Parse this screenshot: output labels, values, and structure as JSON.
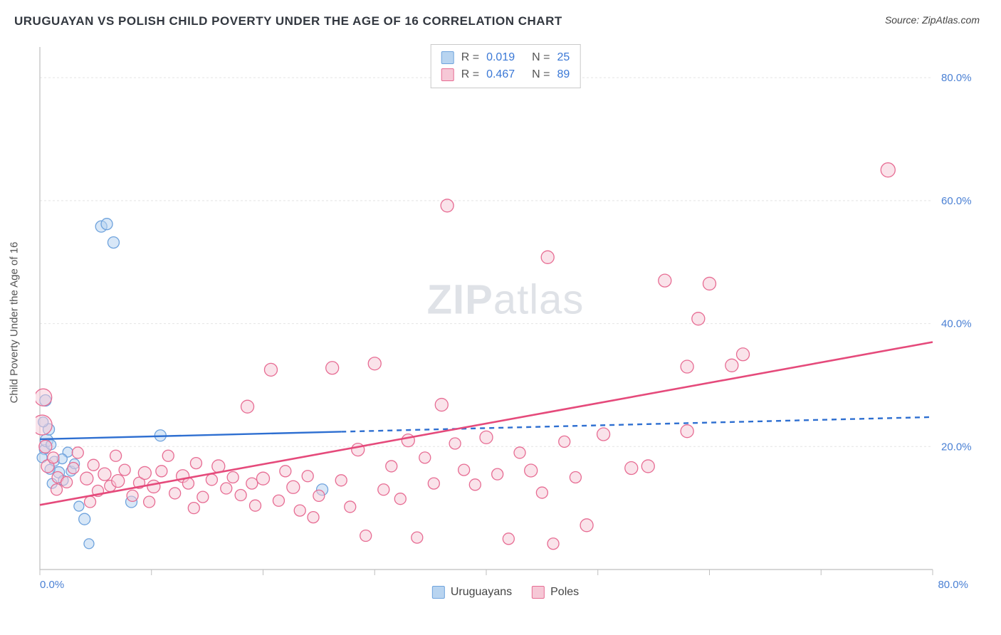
{
  "title": "URUGUAYAN VS POLISH CHILD POVERTY UNDER THE AGE OF 16 CORRELATION CHART",
  "source": "Source: ZipAtlas.com",
  "y_axis_label": "Child Poverty Under the Age of 16",
  "watermark_a": "ZIP",
  "watermark_b": "atlas",
  "chart": {
    "type": "scatter",
    "xlim": [
      0,
      80
    ],
    "ylim": [
      0,
      85
    ],
    "x_ticks": [
      0,
      10,
      20,
      30,
      40,
      50,
      60,
      70,
      80
    ],
    "y_ticks": [
      20,
      40,
      60,
      80
    ],
    "x_tick_labels": [
      "0.0%",
      "",
      "",
      "",
      "",
      "",
      "",
      "",
      "80.0%"
    ],
    "y_tick_labels": [
      "20.0%",
      "40.0%",
      "60.0%",
      "80.0%"
    ],
    "grid_color": "#e4e4e4",
    "axis_color": "#bfbfbf",
    "tick_label_color": "#4a80d4",
    "tick_label_fontsize": 15,
    "background_color": "#ffffff",
    "series": [
      {
        "name": "Uruguayans",
        "fill": "#b8d4f0",
        "stroke": "#6fa3dd",
        "fill_opacity": 0.55,
        "marker_stroke_width": 1.3,
        "trend_line": {
          "color": "#2e6fd1",
          "width": 2.4,
          "dash_after_x": 27,
          "y_start": 21.2,
          "y_end": 24.8
        },
        "points": [
          {
            "x": 0.4,
            "y": 19.5,
            "r": 7
          },
          {
            "x": 0.6,
            "y": 21.0,
            "r": 9
          },
          {
            "x": 0.8,
            "y": 22.8,
            "r": 8
          },
          {
            "x": 0.3,
            "y": 24.0,
            "r": 7
          },
          {
            "x": 0.5,
            "y": 27.5,
            "r": 8
          },
          {
            "x": 0.2,
            "y": 18.2,
            "r": 7
          },
          {
            "x": 1.0,
            "y": 20.3,
            "r": 7
          },
          {
            "x": 1.3,
            "y": 17.6,
            "r": 7
          },
          {
            "x": 1.7,
            "y": 15.8,
            "r": 8
          },
          {
            "x": 2.1,
            "y": 14.5,
            "r": 7
          },
          {
            "x": 2.5,
            "y": 19.1,
            "r": 7
          },
          {
            "x": 2.8,
            "y": 16.0,
            "r": 7
          },
          {
            "x": 3.1,
            "y": 17.2,
            "r": 7
          },
          {
            "x": 3.5,
            "y": 10.3,
            "r": 7
          },
          {
            "x": 4.0,
            "y": 8.2,
            "r": 8
          },
          {
            "x": 4.4,
            "y": 4.2,
            "r": 7
          },
          {
            "x": 5.5,
            "y": 55.8,
            "r": 8
          },
          {
            "x": 6.0,
            "y": 56.2,
            "r": 8
          },
          {
            "x": 6.6,
            "y": 53.2,
            "r": 8
          },
          {
            "x": 8.2,
            "y": 11.0,
            "r": 8
          },
          {
            "x": 10.8,
            "y": 21.8,
            "r": 8
          },
          {
            "x": 1.1,
            "y": 14.0,
            "r": 7
          },
          {
            "x": 0.9,
            "y": 16.3,
            "r": 7
          },
          {
            "x": 2.0,
            "y": 18.0,
            "r": 7
          },
          {
            "x": 25.3,
            "y": 13.0,
            "r": 8
          }
        ]
      },
      {
        "name": "Poles",
        "fill": "#f6c8d6",
        "stroke": "#e76c93",
        "fill_opacity": 0.5,
        "marker_stroke_width": 1.3,
        "trend_line": {
          "color": "#e54a7b",
          "width": 2.6,
          "y_start": 10.5,
          "y_end": 37.0
        },
        "points": [
          {
            "x": 0.2,
            "y": 23.5,
            "r": 14
          },
          {
            "x": 0.3,
            "y": 28.0,
            "r": 12
          },
          {
            "x": 0.5,
            "y": 20.0,
            "r": 9
          },
          {
            "x": 0.7,
            "y": 16.8,
            "r": 9
          },
          {
            "x": 1.2,
            "y": 18.2,
            "r": 8
          },
          {
            "x": 1.6,
            "y": 15.0,
            "r": 8
          },
          {
            "x": 2.4,
            "y": 14.2,
            "r": 8
          },
          {
            "x": 3.0,
            "y": 16.5,
            "r": 8
          },
          {
            "x": 3.4,
            "y": 19.0,
            "r": 8
          },
          {
            "x": 4.2,
            "y": 14.8,
            "r": 9
          },
          {
            "x": 4.8,
            "y": 17.0,
            "r": 8
          },
          {
            "x": 5.2,
            "y": 12.8,
            "r": 8
          },
          {
            "x": 5.8,
            "y": 15.5,
            "r": 9
          },
          {
            "x": 6.3,
            "y": 13.6,
            "r": 8
          },
          {
            "x": 7.0,
            "y": 14.4,
            "r": 9
          },
          {
            "x": 7.6,
            "y": 16.2,
            "r": 8
          },
          {
            "x": 8.3,
            "y": 12.0,
            "r": 8
          },
          {
            "x": 8.9,
            "y": 14.1,
            "r": 8
          },
          {
            "x": 9.4,
            "y": 15.7,
            "r": 9
          },
          {
            "x": 10.2,
            "y": 13.5,
            "r": 9
          },
          {
            "x": 10.9,
            "y": 16.0,
            "r": 8
          },
          {
            "x": 11.5,
            "y": 18.5,
            "r": 8
          },
          {
            "x": 12.1,
            "y": 12.4,
            "r": 8
          },
          {
            "x": 12.8,
            "y": 15.2,
            "r": 9
          },
          {
            "x": 13.3,
            "y": 14.0,
            "r": 8
          },
          {
            "x": 14.0,
            "y": 17.3,
            "r": 8
          },
          {
            "x": 14.6,
            "y": 11.8,
            "r": 8
          },
          {
            "x": 15.4,
            "y": 14.6,
            "r": 8
          },
          {
            "x": 16.0,
            "y": 16.8,
            "r": 9
          },
          {
            "x": 16.7,
            "y": 13.2,
            "r": 8
          },
          {
            "x": 17.3,
            "y": 15.0,
            "r": 8
          },
          {
            "x": 18.0,
            "y": 12.1,
            "r": 8
          },
          {
            "x": 18.6,
            "y": 26.5,
            "r": 9
          },
          {
            "x": 19.3,
            "y": 10.4,
            "r": 8
          },
          {
            "x": 20.0,
            "y": 14.8,
            "r": 9
          },
          {
            "x": 20.7,
            "y": 32.5,
            "r": 9
          },
          {
            "x": 21.4,
            "y": 11.2,
            "r": 8
          },
          {
            "x": 22.0,
            "y": 16.0,
            "r": 8
          },
          {
            "x": 22.7,
            "y": 13.4,
            "r": 9
          },
          {
            "x": 23.3,
            "y": 9.6,
            "r": 8
          },
          {
            "x": 24.0,
            "y": 15.2,
            "r": 8
          },
          {
            "x": 25.0,
            "y": 12.0,
            "r": 8
          },
          {
            "x": 26.2,
            "y": 32.8,
            "r": 9
          },
          {
            "x": 27.0,
            "y": 14.5,
            "r": 8
          },
          {
            "x": 27.8,
            "y": 10.2,
            "r": 8
          },
          {
            "x": 28.5,
            "y": 19.5,
            "r": 9
          },
          {
            "x": 29.2,
            "y": 5.5,
            "r": 8
          },
          {
            "x": 30.0,
            "y": 33.5,
            "r": 9
          },
          {
            "x": 30.8,
            "y": 13.0,
            "r": 8
          },
          {
            "x": 31.5,
            "y": 16.8,
            "r": 8
          },
          {
            "x": 32.3,
            "y": 11.5,
            "r": 8
          },
          {
            "x": 33.0,
            "y": 21.0,
            "r": 9
          },
          {
            "x": 33.8,
            "y": 5.2,
            "r": 8
          },
          {
            "x": 34.5,
            "y": 18.2,
            "r": 8
          },
          {
            "x": 35.3,
            "y": 14.0,
            "r": 8
          },
          {
            "x": 36.0,
            "y": 26.8,
            "r": 9
          },
          {
            "x": 36.5,
            "y": 59.2,
            "r": 9
          },
          {
            "x": 37.2,
            "y": 20.5,
            "r": 8
          },
          {
            "x": 38.0,
            "y": 16.2,
            "r": 8
          },
          {
            "x": 39.0,
            "y": 13.8,
            "r": 8
          },
          {
            "x": 40.0,
            "y": 21.5,
            "r": 9
          },
          {
            "x": 41.0,
            "y": 15.5,
            "r": 8
          },
          {
            "x": 42.0,
            "y": 5.0,
            "r": 8
          },
          {
            "x": 43.0,
            "y": 19.0,
            "r": 8
          },
          {
            "x": 44.0,
            "y": 16.1,
            "r": 9
          },
          {
            "x": 45.0,
            "y": 12.5,
            "r": 8
          },
          {
            "x": 45.5,
            "y": 50.8,
            "r": 9
          },
          {
            "x": 46.0,
            "y": 4.2,
            "r": 8
          },
          {
            "x": 47.0,
            "y": 20.8,
            "r": 8
          },
          {
            "x": 48.0,
            "y": 15.0,
            "r": 8
          },
          {
            "x": 49.0,
            "y": 7.2,
            "r": 9
          },
          {
            "x": 50.5,
            "y": 22.0,
            "r": 9
          },
          {
            "x": 53.0,
            "y": 16.5,
            "r": 9
          },
          {
            "x": 54.5,
            "y": 16.8,
            "r": 9
          },
          {
            "x": 56.0,
            "y": 47.0,
            "r": 9
          },
          {
            "x": 58.0,
            "y": 33.0,
            "r": 9
          },
          {
            "x": 59.0,
            "y": 40.8,
            "r": 9
          },
          {
            "x": 60.0,
            "y": 46.5,
            "r": 9
          },
          {
            "x": 62.0,
            "y": 33.2,
            "r": 9
          },
          {
            "x": 63.0,
            "y": 35.0,
            "r": 9
          },
          {
            "x": 58.0,
            "y": 22.5,
            "r": 9
          },
          {
            "x": 76.0,
            "y": 65.0,
            "r": 10
          },
          {
            "x": 1.5,
            "y": 13.0,
            "r": 8
          },
          {
            "x": 4.5,
            "y": 11.0,
            "r": 8
          },
          {
            "x": 6.8,
            "y": 18.5,
            "r": 8
          },
          {
            "x": 9.8,
            "y": 11.0,
            "r": 8
          },
          {
            "x": 13.8,
            "y": 10.0,
            "r": 8
          },
          {
            "x": 19.0,
            "y": 14.0,
            "r": 8
          },
          {
            "x": 24.5,
            "y": 8.5,
            "r": 8
          }
        ]
      }
    ]
  },
  "stats": [
    {
      "swatch_fill": "#b8d4f0",
      "swatch_stroke": "#6fa3dd",
      "r_label": "R =",
      "r": "0.019",
      "n_label": "N =",
      "n": "25"
    },
    {
      "swatch_fill": "#f6c8d6",
      "swatch_stroke": "#e76c93",
      "r_label": "R =",
      "r": "0.467",
      "n_label": "N =",
      "n": "89"
    }
  ],
  "legend": [
    {
      "swatch_fill": "#b8d4f0",
      "swatch_stroke": "#6fa3dd",
      "label": "Uruguayans"
    },
    {
      "swatch_fill": "#f6c8d6",
      "swatch_stroke": "#e76c93",
      "label": "Poles"
    }
  ]
}
